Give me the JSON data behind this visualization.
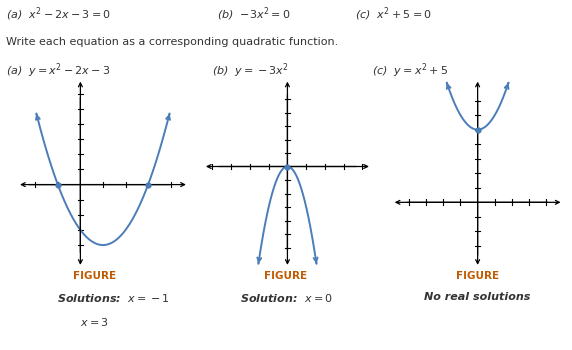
{
  "bg_color": "#ffffff",
  "curve_color": "#4b7db8",
  "dot_color": "#4b7db8",
  "figure_color": "#c05a00",
  "text_color": "#333333",
  "figure_label": "FIGURE",
  "top_eq_a": "(a)  $x^2 - 2x - 3 = 0$",
  "top_eq_b": "(b)  $-3x^2 = 0$",
  "top_eq_c": "(c)  $x^2 + 5 = 0$",
  "subtitle": "Write each equation as a corresponding quadratic function.",
  "func_a": "(a)  $y = x^2 - 2x - 3$",
  "func_b": "(b)  $y = -3x^2$",
  "func_c": "(c)  $y = x^2 + 5$",
  "sol_a1": "Solutions:  $x = -1$",
  "sol_a2": "$x = 3$",
  "sol_b": "Solution:  $x = 0$",
  "sol_c": "No real solutions"
}
